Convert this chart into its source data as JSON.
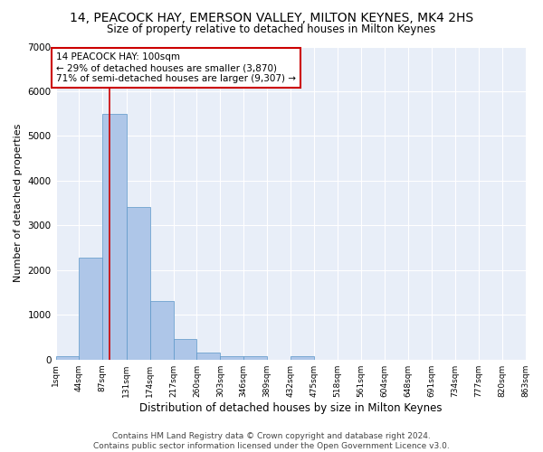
{
  "title": "14, PEACOCK HAY, EMERSON VALLEY, MILTON KEYNES, MK4 2HS",
  "subtitle": "Size of property relative to detached houses in Milton Keynes",
  "xlabel": "Distribution of detached houses by size in Milton Keynes",
  "ylabel": "Number of detached properties",
  "footer_line1": "Contains HM Land Registry data © Crown copyright and database right 2024.",
  "footer_line2": "Contains public sector information licensed under the Open Government Licence v3.0.",
  "annotation_title": "14 PEACOCK HAY: 100sqm",
  "annotation_line1": "← 29% of detached houses are smaller (3,870)",
  "annotation_line2": "71% of semi-detached houses are larger (9,307) →",
  "property_size_sqm": 100,
  "bin_edges": [
    1,
    44,
    87,
    131,
    174,
    217,
    260,
    303,
    346,
    389,
    432,
    475,
    518,
    561,
    604,
    648,
    691,
    734,
    777,
    820,
    863
  ],
  "bar_heights": [
    80,
    2270,
    5490,
    3420,
    1300,
    460,
    165,
    75,
    75,
    0,
    75,
    0,
    0,
    0,
    0,
    0,
    0,
    0,
    0,
    0
  ],
  "bar_color": "#aec6e8",
  "bar_edge_color": "#5a96c8",
  "vline_color": "#cc0000",
  "vline_x": 100,
  "ylim": [
    0,
    7000
  ],
  "yticks": [
    0,
    1000,
    2000,
    3000,
    4000,
    5000,
    6000,
    7000
  ],
  "background_color": "#e8eef8",
  "grid_color": "#ffffff",
  "annotation_box_edge_color": "#cc0000",
  "annotation_box_fill_color": "#ffffff",
  "annotation_font_size": 7.5,
  "title_font_size": 10,
  "subtitle_font_size": 8.5,
  "xlabel_font_size": 8.5,
  "ylabel_font_size": 8,
  "footer_font_size": 6.5,
  "tick_font_size": 6.5,
  "ytick_font_size": 7.5
}
